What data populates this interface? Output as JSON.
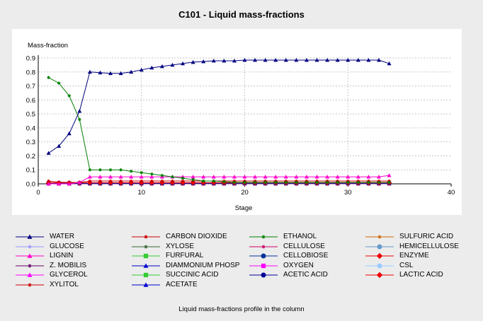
{
  "chart_data": {
    "type": "line",
    "title": "C101 - Liquid mass-fractions",
    "ylabel": "Mass-fraction",
    "xlabel": "Stage",
    "caption": "Liquid mass-fractions profile in the column",
    "xlim": [
      0,
      40
    ],
    "ylim": [
      0,
      0.9
    ],
    "xticks": [
      0,
      10,
      20,
      30,
      40
    ],
    "yticks": [
      0.0,
      0.1,
      0.2,
      0.3,
      0.4,
      0.5,
      0.6,
      0.7,
      0.8,
      0.9
    ],
    "grid": true,
    "legend_position": "bottom",
    "x": [
      1,
      2,
      3,
      4,
      5,
      6,
      7,
      8,
      9,
      10,
      11,
      12,
      13,
      14,
      15,
      16,
      17,
      18,
      19,
      20,
      21,
      22,
      23,
      24,
      25,
      26,
      27,
      28,
      29,
      30,
      31,
      32,
      33,
      34
    ],
    "series": [
      {
        "name": "WATER",
        "color": "#000080",
        "marker": "tri",
        "values": [
          0.22,
          0.27,
          0.36,
          0.52,
          0.8,
          0.795,
          0.79,
          0.79,
          0.8,
          0.815,
          0.83,
          0.84,
          0.85,
          0.86,
          0.87,
          0.875,
          0.88,
          0.88,
          0.88,
          0.885,
          0.885,
          0.885,
          0.885,
          0.885,
          0.885,
          0.885,
          0.885,
          0.885,
          0.885,
          0.885,
          0.885,
          0.885,
          0.885,
          0.86
        ]
      },
      {
        "name": "CARBON DIOXIDE",
        "color": "#cc0000",
        "marker": "star",
        "values": [
          0.02,
          0.012,
          0.01,
          0.01,
          0.02,
          0.02,
          0.02,
          0.02,
          0.02,
          0.02,
          0.02,
          0.02,
          0.02,
          0.02,
          0.02,
          0.02,
          0.02,
          0.02,
          0.02,
          0.02,
          0.02,
          0.02,
          0.02,
          0.02,
          0.02,
          0.02,
          0.02,
          0.02,
          0.02,
          0.02,
          0.02,
          0.02,
          0.02,
          0.02
        ]
      },
      {
        "name": "ETHANOL",
        "color": "#008000",
        "marker": "star",
        "values": [
          0.76,
          0.72,
          0.63,
          0.46,
          0.1,
          0.1,
          0.1,
          0.1,
          0.09,
          0.08,
          0.07,
          0.06,
          0.05,
          0.04,
          0.03,
          0.02,
          0.02,
          0.015,
          0.01,
          0.01,
          0.01,
          0.01,
          0.01,
          0.01,
          0.01,
          0.01,
          0.01,
          0.01,
          0.01,
          0.01,
          0.01,
          0.01,
          0.01,
          0.01
        ]
      },
      {
        "name": "SULFURIC ACID",
        "color": "#cc6600",
        "marker": "star",
        "values": [
          0.001,
          0.001,
          0.001,
          0.001,
          0.001,
          0.001,
          0.001,
          0.001,
          0.001,
          0.001,
          0.001,
          0.001,
          0.001,
          0.001,
          0.001,
          0.001,
          0.001,
          0.001,
          0.001,
          0.001,
          0.001,
          0.001,
          0.001,
          0.001,
          0.001,
          0.001,
          0.001,
          0.001,
          0.001,
          0.001,
          0.001,
          0.001,
          0.001,
          0.001
        ]
      },
      {
        "name": "GLUCOSE",
        "color": "#9999ff",
        "marker": "star",
        "values": [
          0.003,
          0.003,
          0.003,
          0.003,
          0.003,
          0.003,
          0.003,
          0.003,
          0.003,
          0.003,
          0.003,
          0.003,
          0.003,
          0.003,
          0.003,
          0.003,
          0.003,
          0.003,
          0.003,
          0.003,
          0.003,
          0.003,
          0.003,
          0.003,
          0.003,
          0.003,
          0.003,
          0.003,
          0.003,
          0.003,
          0.003,
          0.003,
          0.003,
          0.003
        ]
      },
      {
        "name": "XYLOSE",
        "color": "#336633",
        "marker": "star",
        "values": [
          0.004,
          0.004,
          0.004,
          0.004,
          0.004,
          0.004,
          0.004,
          0.004,
          0.004,
          0.004,
          0.004,
          0.004,
          0.004,
          0.004,
          0.004,
          0.004,
          0.004,
          0.004,
          0.004,
          0.004,
          0.004,
          0.004,
          0.004,
          0.004,
          0.004,
          0.004,
          0.004,
          0.004,
          0.004,
          0.004,
          0.004,
          0.004,
          0.004,
          0.004
        ]
      },
      {
        "name": "CELLULOSE",
        "color": "#cc0066",
        "marker": "star",
        "values": [
          0.005,
          0.005,
          0.005,
          0.005,
          0.005,
          0.005,
          0.005,
          0.005,
          0.005,
          0.005,
          0.005,
          0.005,
          0.005,
          0.005,
          0.005,
          0.005,
          0.005,
          0.005,
          0.005,
          0.005,
          0.005,
          0.005,
          0.005,
          0.005,
          0.005,
          0.005,
          0.005,
          0.005,
          0.005,
          0.005,
          0.005,
          0.005,
          0.005,
          0.005
        ]
      },
      {
        "name": "HEMICELLULOSE",
        "color": "#6699cc",
        "marker": "circle",
        "values": [
          0.003,
          0.003,
          0.003,
          0.003,
          0.003,
          0.003,
          0.003,
          0.003,
          0.003,
          0.003,
          0.003,
          0.003,
          0.003,
          0.003,
          0.003,
          0.003,
          0.003,
          0.003,
          0.003,
          0.003,
          0.003,
          0.003,
          0.003,
          0.003,
          0.003,
          0.003,
          0.003,
          0.003,
          0.003,
          0.003,
          0.003,
          0.003,
          0.003,
          0.003
        ]
      },
      {
        "name": "LIGNIN",
        "color": "#ff00cc",
        "marker": "tri",
        "values": [
          0.0,
          0.0,
          0.0,
          0.01,
          0.05,
          0.05,
          0.05,
          0.05,
          0.05,
          0.05,
          0.05,
          0.05,
          0.05,
          0.05,
          0.05,
          0.05,
          0.05,
          0.05,
          0.05,
          0.05,
          0.05,
          0.05,
          0.05,
          0.05,
          0.05,
          0.05,
          0.05,
          0.05,
          0.05,
          0.05,
          0.05,
          0.05,
          0.05,
          0.06
        ]
      },
      {
        "name": "FURFURAL",
        "color": "#33cc33",
        "marker": "square",
        "values": [
          0.002,
          0.002,
          0.002,
          0.002,
          0.002,
          0.002,
          0.002,
          0.002,
          0.002,
          0.002,
          0.002,
          0.002,
          0.002,
          0.002,
          0.002,
          0.002,
          0.002,
          0.002,
          0.002,
          0.002,
          0.002,
          0.002,
          0.002,
          0.002,
          0.002,
          0.002,
          0.002,
          0.002,
          0.002,
          0.002,
          0.002,
          0.002,
          0.002,
          0.002
        ]
      },
      {
        "name": "CELLOBIOSE",
        "color": "#003399",
        "marker": "circle",
        "values": [
          0.006,
          0.006,
          0.006,
          0.006,
          0.006,
          0.006,
          0.006,
          0.006,
          0.006,
          0.006,
          0.006,
          0.006,
          0.006,
          0.006,
          0.006,
          0.006,
          0.006,
          0.006,
          0.006,
          0.006,
          0.006,
          0.006,
          0.006,
          0.006,
          0.006,
          0.006,
          0.006,
          0.006,
          0.006,
          0.006,
          0.006,
          0.006,
          0.006,
          0.006
        ]
      },
      {
        "name": "ENZYME",
        "color": "#ee0000",
        "marker": "diamond",
        "values": [
          0.008,
          0.008,
          0.008,
          0.008,
          0.008,
          0.008,
          0.008,
          0.008,
          0.008,
          0.008,
          0.008,
          0.008,
          0.008,
          0.008,
          0.008,
          0.008,
          0.008,
          0.008,
          0.008,
          0.008,
          0.008,
          0.008,
          0.008,
          0.008,
          0.008,
          0.008,
          0.008,
          0.008,
          0.008,
          0.008,
          0.008,
          0.008,
          0.008,
          0.008
        ]
      },
      {
        "name": "Z. MOBILIS",
        "color": "#660066",
        "marker": "star",
        "values": [
          0.002,
          0.002,
          0.002,
          0.002,
          0.002,
          0.002,
          0.002,
          0.002,
          0.002,
          0.002,
          0.002,
          0.002,
          0.002,
          0.002,
          0.002,
          0.002,
          0.002,
          0.002,
          0.002,
          0.002,
          0.002,
          0.002,
          0.002,
          0.002,
          0.002,
          0.002,
          0.002,
          0.002,
          0.002,
          0.002,
          0.002,
          0.002,
          0.002,
          0.002
        ]
      },
      {
        "name": "DIAMMONIUM PHOSP",
        "color": "#0000cc",
        "marker": "tri",
        "values": [
          0.004,
          0.004,
          0.004,
          0.004,
          0.004,
          0.004,
          0.004,
          0.004,
          0.004,
          0.004,
          0.004,
          0.004,
          0.004,
          0.004,
          0.004,
          0.004,
          0.004,
          0.004,
          0.004,
          0.004,
          0.004,
          0.004,
          0.004,
          0.004,
          0.004,
          0.004,
          0.004,
          0.004,
          0.004,
          0.004,
          0.004,
          0.004,
          0.004,
          0.004
        ]
      },
      {
        "name": "OXYGEN",
        "color": "#ff00ff",
        "marker": "square",
        "values": [
          0.001,
          0.001,
          0.001,
          0.001,
          0.001,
          0.001,
          0.001,
          0.001,
          0.001,
          0.001,
          0.001,
          0.001,
          0.001,
          0.001,
          0.001,
          0.001,
          0.001,
          0.001,
          0.001,
          0.001,
          0.001,
          0.001,
          0.001,
          0.001,
          0.001,
          0.001,
          0.001,
          0.001,
          0.001,
          0.001,
          0.001,
          0.001,
          0.001,
          0.001
        ]
      },
      {
        "name": "CSL",
        "color": "#99ccff",
        "marker": "circle",
        "values": [
          0.002,
          0.002,
          0.002,
          0.002,
          0.002,
          0.002,
          0.002,
          0.002,
          0.002,
          0.002,
          0.002,
          0.002,
          0.002,
          0.002,
          0.002,
          0.002,
          0.002,
          0.002,
          0.002,
          0.002,
          0.002,
          0.002,
          0.002,
          0.002,
          0.002,
          0.002,
          0.002,
          0.002,
          0.002,
          0.002,
          0.002,
          0.002,
          0.002,
          0.002
        ]
      },
      {
        "name": "GLYCEROL",
        "color": "#ff00ff",
        "marker": "tri",
        "values": [
          0.005,
          0.005,
          0.005,
          0.005,
          0.005,
          0.005,
          0.005,
          0.005,
          0.005,
          0.005,
          0.005,
          0.005,
          0.005,
          0.005,
          0.005,
          0.005,
          0.005,
          0.005,
          0.005,
          0.005,
          0.005,
          0.005,
          0.005,
          0.005,
          0.005,
          0.005,
          0.005,
          0.005,
          0.005,
          0.005,
          0.005,
          0.005,
          0.005,
          0.005
        ]
      },
      {
        "name": "SUCCINIC ACID",
        "color": "#33cc33",
        "marker": "square",
        "values": [
          0.003,
          0.003,
          0.003,
          0.003,
          0.003,
          0.003,
          0.003,
          0.003,
          0.003,
          0.003,
          0.003,
          0.003,
          0.003,
          0.003,
          0.003,
          0.003,
          0.003,
          0.003,
          0.003,
          0.003,
          0.003,
          0.003,
          0.003,
          0.003,
          0.003,
          0.003,
          0.003,
          0.003,
          0.003,
          0.003,
          0.003,
          0.003,
          0.003,
          0.003
        ]
      },
      {
        "name": "ACETIC ACID",
        "color": "#000099",
        "marker": "circle",
        "values": [
          0.007,
          0.007,
          0.007,
          0.007,
          0.007,
          0.007,
          0.007,
          0.007,
          0.007,
          0.007,
          0.007,
          0.007,
          0.007,
          0.007,
          0.007,
          0.007,
          0.007,
          0.007,
          0.007,
          0.007,
          0.007,
          0.007,
          0.007,
          0.007,
          0.007,
          0.007,
          0.007,
          0.007,
          0.007,
          0.007,
          0.007,
          0.007,
          0.007,
          0.007
        ]
      },
      {
        "name": "LACTIC ACID",
        "color": "#ee0000",
        "marker": "diamond",
        "values": [
          0.003,
          0.003,
          0.003,
          0.003,
          0.003,
          0.003,
          0.003,
          0.003,
          0.003,
          0.003,
          0.003,
          0.003,
          0.003,
          0.003,
          0.003,
          0.003,
          0.003,
          0.003,
          0.003,
          0.003,
          0.003,
          0.003,
          0.003,
          0.003,
          0.003,
          0.003,
          0.003,
          0.003,
          0.003,
          0.003,
          0.003,
          0.003,
          0.003,
          0.003
        ]
      },
      {
        "name": "XYLITOL",
        "color": "#cc0000",
        "marker": "star",
        "values": [
          0.002,
          0.002,
          0.002,
          0.002,
          0.002,
          0.002,
          0.002,
          0.002,
          0.002,
          0.002,
          0.002,
          0.002,
          0.002,
          0.002,
          0.002,
          0.002,
          0.002,
          0.002,
          0.002,
          0.002,
          0.002,
          0.002,
          0.002,
          0.002,
          0.002,
          0.002,
          0.002,
          0.002,
          0.002,
          0.002,
          0.002,
          0.002,
          0.002,
          0.002
        ]
      },
      {
        "name": "ACETATE",
        "color": "#0000cc",
        "marker": "tri",
        "values": [
          0.003,
          0.003,
          0.003,
          0.003,
          0.003,
          0.003,
          0.003,
          0.003,
          0.003,
          0.003,
          0.003,
          0.003,
          0.003,
          0.003,
          0.003,
          0.003,
          0.003,
          0.003,
          0.003,
          0.003,
          0.003,
          0.003,
          0.003,
          0.003,
          0.003,
          0.003,
          0.003,
          0.003,
          0.003,
          0.003,
          0.003,
          0.003,
          0.003,
          0.003
        ]
      }
    ]
  }
}
